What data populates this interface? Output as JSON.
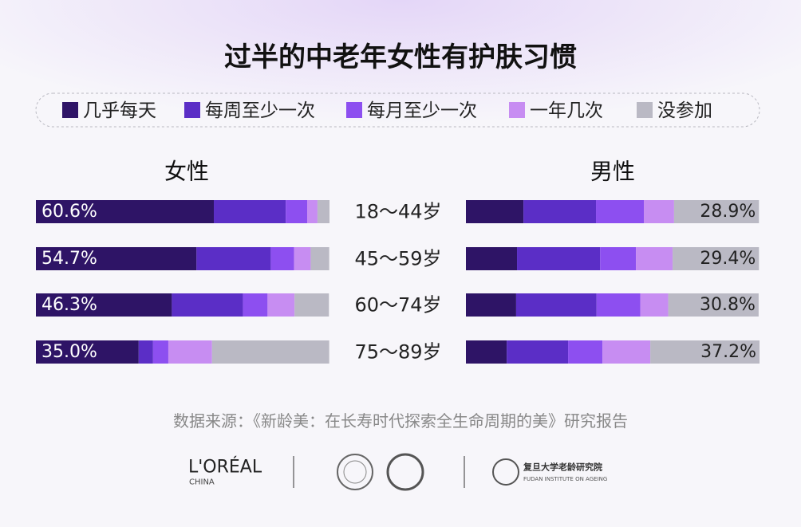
{
  "chart_data": {
    "type": "stacked_bar",
    "title": "过半的中老年女性有护肤习惯",
    "series": [
      {
        "name": "几乎每天",
        "color": "#2e1466"
      },
      {
        "name": "每周至少一次",
        "color": "#5b2ec6"
      },
      {
        "name": "每月至少一次",
        "color": "#8d4ff0"
      },
      {
        "name": "一年几次",
        "color": "#c78df2"
      },
      {
        "name": "没参加",
        "color": "#bab9c4"
      }
    ],
    "categories": [
      "18～44岁",
      "45～59岁",
      "60～74岁",
      "75～89岁"
    ],
    "xlim": [
      0,
      100
    ],
    "panels": [
      {
        "title": "女性",
        "series": [
          {
            "values": [
              60.6,
              54.7,
              46.3,
              35.0
            ],
            "value_labels": [
              "60.6%",
              "54.7%",
              "46.3%",
              "35.0%"
            ]
          },
          {
            "values": [
              24.5,
              25.3,
              24.2,
              4.9
            ]
          },
          {
            "values": [
              7.3,
              7.9,
              8.4,
              5.2
            ]
          },
          {
            "values": [
              3.5,
              5.7,
              9.2,
              14.9
            ]
          },
          {
            "values": [
              4.1,
              6.3,
              11.7,
              39.9
            ]
          }
        ]
      },
      {
        "title": "男性",
        "series": [
          {
            "values": [
              19.6,
              17.4,
              17.1,
              13.9
            ]
          },
          {
            "values": [
              24.7,
              28.3,
              27.4,
              20.9
            ]
          },
          {
            "values": [
              16.3,
              12.2,
              14.9,
              11.7
            ]
          },
          {
            "values": [
              10.3,
              12.5,
              9.5,
              16.3
            ]
          },
          {
            "values": [
              28.9,
              29.4,
              30.8,
              37.2
            ],
            "value_labels": [
              "28.9%",
              "29.4%",
              "30.8%",
              "37.2%"
            ]
          }
        ]
      }
    ],
    "source": "数据来源：《新龄美：在长寿时代探索全生命周期的美》研究报告",
    "logos": {
      "loreal": "L'ORÉAL",
      "loreal_sub": "CHINA",
      "fudan": "复旦大学老龄研究院",
      "fudan_sub": "FUDAN INSTITUTE ON AGEING"
    }
  }
}
